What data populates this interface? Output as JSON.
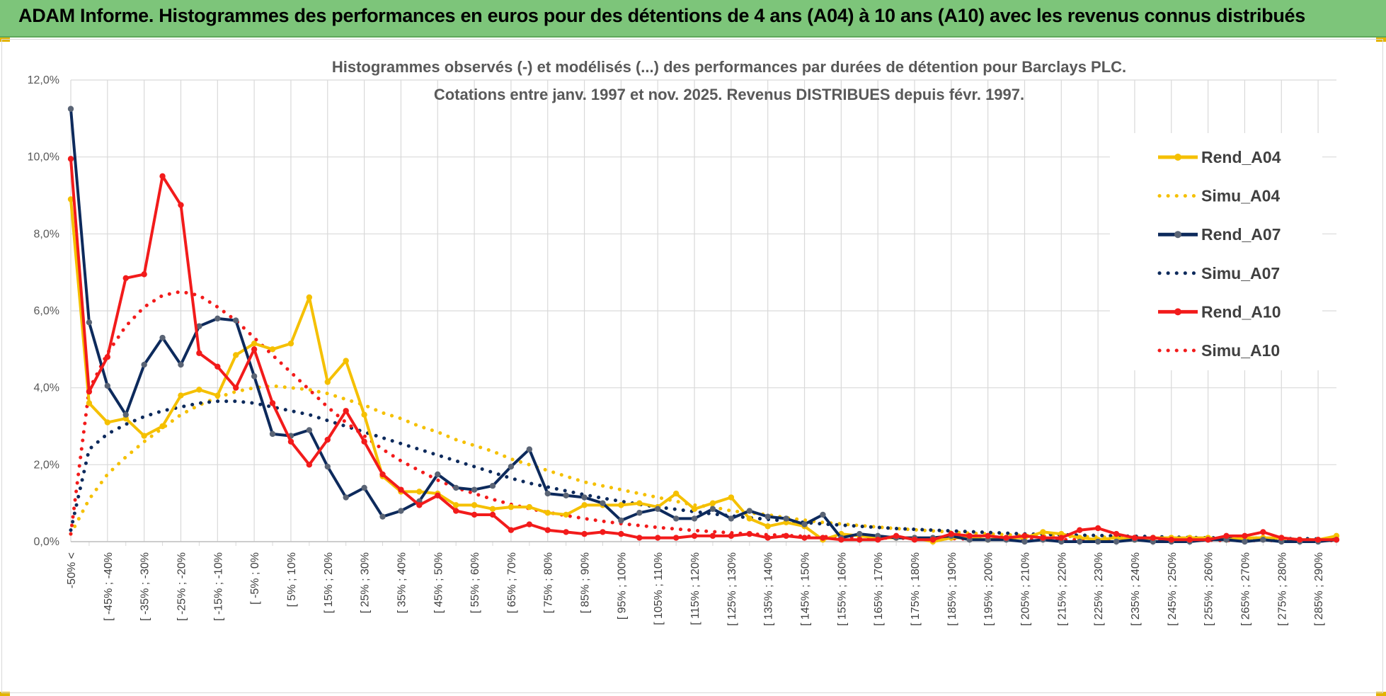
{
  "header": {
    "title": "ADAM Informe. Histogrammes des performances en euros pour des détentions de 4 ans (A04) à 10 ans (A10) avec les revenus connus distribués"
  },
  "chart_data": {
    "type": "line",
    "title": "Histogrammes observés (-) et modélisés (...) des performances par durées de détention pour Barclays PLC.",
    "subtitle": "Cotations entre janv. 1997 et nov. 2025. Revenus DISTRIBUES depuis févr. 1997.",
    "xlabel": "",
    "ylabel": "",
    "ylim": [
      0,
      12
    ],
    "grid": true,
    "legend_position": "right",
    "y_ticks": [
      "0,0%",
      "2,0%",
      "4,0%",
      "6,0%",
      "8,0%",
      "10,0%",
      "12,0%"
    ],
    "x_tick_labels": [
      "-50% <",
      "[ -45% ; -40%",
      "[ -35% ; -30%",
      "[ -25% ; -20%",
      "[ -15% ; -10%",
      "[ -5% ; 0%",
      "[ 5% ; 10%",
      "[ 15% ; 20%",
      "[ 25% ; 30%",
      "[ 35% ; 40%",
      "[ 45% ; 50%",
      "[ 55% ; 60%",
      "[ 65% ; 70%",
      "[ 75% ; 80%",
      "[ 85% ; 90%",
      "[ 95% ; 100%",
      "[ 105% ; 110%",
      "[ 115% ; 120%",
      "[ 125% ; 130%",
      "[ 135% ; 140%",
      "[ 145% ; 150%",
      "[ 155% ; 160%",
      "[ 165% ; 170%",
      "[ 175% ; 180%",
      "[ 185% ; 190%",
      "[ 195% ; 200%",
      "[ 205% ; 210%",
      "[ 215% ; 220%",
      "[ 225% ; 230%",
      "[ 235% ; 240%",
      "[ 245% ; 250%",
      "[ 255% ; 260%",
      "[ 265% ; 270%",
      "[ 275% ; 280%",
      "[ 285% ; 290%"
    ],
    "series": [
      {
        "name": "Rend_A04",
        "color": "#f5c000",
        "style": "solid",
        "markers": true,
        "values": [
          8.9,
          3.6,
          3.1,
          3.2,
          2.75,
          3.0,
          3.8,
          3.95,
          3.8,
          4.85,
          5.15,
          5.0,
          5.15,
          6.35,
          4.15,
          4.7,
          3.3,
          1.7,
          1.3,
          1.3,
          1.25,
          0.95,
          0.95,
          0.85,
          0.9,
          0.9,
          0.75,
          0.7,
          0.95,
          0.95,
          0.95,
          1.0,
          0.9,
          1.25,
          0.85,
          1.0,
          1.15,
          0.6,
          0.4,
          0.5,
          0.4,
          0.05,
          0.2,
          0.15,
          0.1,
          0.1,
          0.1,
          0.0,
          0.1,
          0.1,
          0.05,
          0.1,
          0.1,
          0.25,
          0.2,
          0.1,
          0.05,
          0.1,
          0.05,
          0.1,
          0.1,
          0.1,
          0.1,
          0.05,
          0.1,
          0.1,
          0.1,
          0.05,
          0.05,
          0.15
        ]
      },
      {
        "name": "Simu_A04",
        "color": "#f5c000",
        "style": "dotted",
        "markers": false,
        "values": [
          0.2,
          1.1,
          1.75,
          2.2,
          2.6,
          2.95,
          3.3,
          3.55,
          3.75,
          3.9,
          4.0,
          4.05,
          4.0,
          3.95,
          3.85,
          3.7,
          3.55,
          3.35,
          3.2,
          3.0,
          2.85,
          2.65,
          2.5,
          2.35,
          2.15,
          2.0,
          1.85,
          1.7,
          1.55,
          1.45,
          1.35,
          1.25,
          1.15,
          1.05,
          0.95,
          0.9,
          0.8,
          0.75,
          0.7,
          0.62,
          0.56,
          0.5,
          0.46,
          0.42,
          0.38,
          0.34,
          0.31,
          0.28,
          0.25,
          0.22,
          0.2,
          0.18,
          0.16,
          0.15,
          0.14,
          0.13,
          0.12,
          0.11,
          0.1,
          0.09,
          0.09,
          0.08,
          0.08,
          0.07,
          0.07,
          0.06,
          0.06,
          0.05,
          0.05,
          0.05
        ]
      },
      {
        "name": "Rend_A07",
        "color": "#0d2a5c",
        "style": "solid",
        "markers": true,
        "values": [
          11.25,
          5.7,
          4.05,
          3.3,
          4.6,
          5.3,
          4.6,
          5.6,
          5.8,
          5.75,
          4.3,
          2.8,
          2.75,
          2.9,
          1.95,
          1.15,
          1.4,
          0.65,
          0.8,
          1.05,
          1.75,
          1.4,
          1.35,
          1.45,
          1.95,
          2.4,
          1.25,
          1.2,
          1.15,
          1.0,
          0.55,
          0.75,
          0.85,
          0.6,
          0.6,
          0.85,
          0.6,
          0.8,
          0.65,
          0.6,
          0.45,
          0.7,
          0.1,
          0.2,
          0.15,
          0.1,
          0.1,
          0.1,
          0.15,
          0.05,
          0.05,
          0.05,
          0.0,
          0.05,
          0.0,
          0.0,
          0.0,
          0.0,
          0.05,
          0.0,
          0.0,
          0.0,
          0.05,
          0.05,
          0.0,
          0.05,
          0.0,
          0.0,
          0.0,
          0.05
        ]
      },
      {
        "name": "Simu_A07",
        "color": "#0d2a5c",
        "style": "dotted",
        "markers": false,
        "values": [
          0.3,
          2.4,
          2.8,
          3.05,
          3.25,
          3.4,
          3.5,
          3.6,
          3.65,
          3.65,
          3.6,
          3.5,
          3.4,
          3.3,
          3.15,
          3.0,
          2.85,
          2.7,
          2.55,
          2.4,
          2.25,
          2.1,
          1.95,
          1.8,
          1.65,
          1.52,
          1.42,
          1.32,
          1.22,
          1.13,
          1.05,
          0.97,
          0.9,
          0.84,
          0.78,
          0.72,
          0.67,
          0.62,
          0.58,
          0.54,
          0.5,
          0.46,
          0.43,
          0.4,
          0.37,
          0.34,
          0.32,
          0.3,
          0.28,
          0.26,
          0.24,
          0.22,
          0.2,
          0.19,
          0.18,
          0.17,
          0.16,
          0.15,
          0.14,
          0.13,
          0.12,
          0.11,
          0.1,
          0.1,
          0.09,
          0.09,
          0.08,
          0.08,
          0.07,
          0.07
        ]
      },
      {
        "name": "Rend_A10",
        "color": "#f21b1b",
        "style": "solid",
        "markers": true,
        "values": [
          9.95,
          3.9,
          4.8,
          6.85,
          6.95,
          9.5,
          8.75,
          4.9,
          4.55,
          4.0,
          5.0,
          3.6,
          2.6,
          2.0,
          2.65,
          3.4,
          2.6,
          1.75,
          1.35,
          0.95,
          1.2,
          0.8,
          0.7,
          0.7,
          0.3,
          0.45,
          0.3,
          0.25,
          0.2,
          0.25,
          0.2,
          0.1,
          0.1,
          0.1,
          0.15,
          0.15,
          0.15,
          0.2,
          0.1,
          0.15,
          0.1,
          0.1,
          0.05,
          0.05,
          0.05,
          0.15,
          0.05,
          0.05,
          0.2,
          0.15,
          0.15,
          0.1,
          0.15,
          0.1,
          0.1,
          0.3,
          0.35,
          0.2,
          0.1,
          0.1,
          0.05,
          0.05,
          0.05,
          0.15,
          0.15,
          0.25,
          0.1,
          0.05,
          0.05,
          0.05
        ]
      },
      {
        "name": "Simu_A10",
        "color": "#f21b1b",
        "style": "dotted",
        "markers": false,
        "values": [
          0.2,
          3.95,
          4.9,
          5.6,
          6.1,
          6.4,
          6.5,
          6.4,
          6.1,
          5.75,
          5.3,
          4.85,
          4.4,
          3.95,
          3.5,
          3.1,
          2.75,
          2.4,
          2.1,
          1.85,
          1.6,
          1.4,
          1.25,
          1.1,
          0.97,
          0.86,
          0.76,
          0.68,
          0.6,
          0.53,
          0.47,
          0.42,
          0.37,
          0.33,
          0.29,
          0.26,
          0.23,
          0.2,
          0.18,
          0.16,
          0.14,
          0.13,
          0.12,
          0.11,
          0.1,
          0.09,
          0.09,
          0.08,
          0.08,
          0.07,
          0.07,
          0.06,
          0.06,
          0.06,
          0.05,
          0.05,
          0.05,
          0.05,
          0.04,
          0.04,
          0.04,
          0.04,
          0.04,
          0.03,
          0.03,
          0.03,
          0.03,
          0.03,
          0.03,
          0.03
        ]
      }
    ]
  }
}
